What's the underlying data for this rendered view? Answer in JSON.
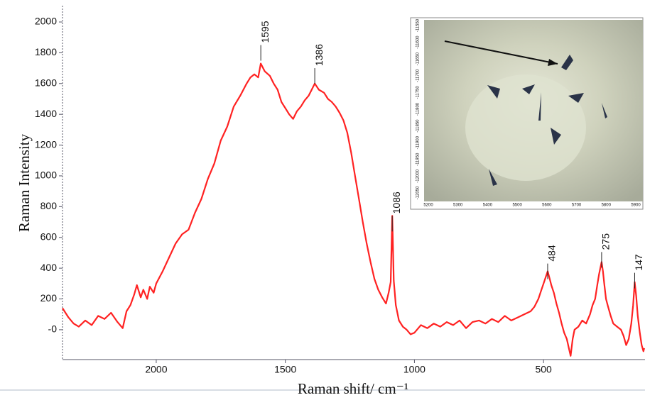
{
  "chart_data": {
    "type": "line",
    "y_label": "Raman Intensity",
    "x_label": "Raman shift/ cm⁻¹",
    "color": "#ff2222",
    "xlim": [
      2363,
      107
    ],
    "ylim": [
      -194,
      2106
    ],
    "xticks": [
      2000,
      1500,
      1000,
      500
    ],
    "yticks": [
      2000,
      1800,
      1600,
      1400,
      1200,
      1000,
      800,
      600,
      400,
      200,
      {
        "value": 0,
        "label": "-0"
      }
    ],
    "x": [
      2363,
      2340,
      2320,
      2300,
      2275,
      2250,
      2225,
      2200,
      2175,
      2150,
      2130,
      2115,
      2100,
      2085,
      2075,
      2060,
      2050,
      2035,
      2025,
      2010,
      2000,
      1975,
      1950,
      1925,
      1900,
      1875,
      1850,
      1825,
      1800,
      1775,
      1750,
      1725,
      1700,
      1675,
      1650,
      1635,
      1620,
      1605,
      1595,
      1580,
      1560,
      1545,
      1530,
      1515,
      1500,
      1485,
      1470,
      1455,
      1440,
      1425,
      1410,
      1398,
      1386,
      1370,
      1350,
      1335,
      1320,
      1305,
      1290,
      1275,
      1260,
      1245,
      1230,
      1215,
      1200,
      1185,
      1170,
      1155,
      1140,
      1125,
      1110,
      1100,
      1092,
      1086,
      1080,
      1072,
      1060,
      1045,
      1030,
      1015,
      1000,
      975,
      950,
      925,
      900,
      875,
      850,
      825,
      800,
      775,
      750,
      725,
      700,
      675,
      650,
      625,
      600,
      575,
      550,
      535,
      520,
      510,
      500,
      492,
      484,
      476,
      470,
      460,
      450,
      440,
      430,
      420,
      410,
      402,
      395,
      387,
      380,
      365,
      350,
      335,
      320,
      310,
      300,
      292,
      285,
      280,
      275,
      270,
      265,
      258,
      250,
      240,
      230,
      215,
      200,
      190,
      180,
      170,
      160,
      153,
      147,
      141,
      135,
      127,
      120,
      113,
      110
    ],
    "values": [
      140,
      80,
      40,
      20,
      60,
      30,
      90,
      70,
      110,
      50,
      10,
      120,
      160,
      230,
      290,
      210,
      260,
      200,
      280,
      240,
      300,
      380,
      470,
      560,
      620,
      650,
      760,
      850,
      980,
      1080,
      1230,
      1320,
      1450,
      1520,
      1600,
      1640,
      1660,
      1640,
      1730,
      1680,
      1650,
      1600,
      1560,
      1480,
      1440,
      1400,
      1370,
      1420,
      1450,
      1490,
      1520,
      1560,
      1600,
      1560,
      1540,
      1500,
      1480,
      1450,
      1410,
      1360,
      1280,
      1150,
      1000,
      850,
      700,
      560,
      440,
      330,
      260,
      210,
      170,
      240,
      310,
      740,
      320,
      160,
      60,
      20,
      0,
      -30,
      -20,
      30,
      10,
      40,
      20,
      50,
      30,
      60,
      10,
      50,
      60,
      40,
      70,
      50,
      90,
      60,
      80,
      100,
      120,
      150,
      200,
      250,
      300,
      340,
      380,
      330,
      290,
      240,
      170,
      110,
      40,
      -20,
      -60,
      -120,
      -170,
      -60,
      0,
      20,
      60,
      40,
      100,
      160,
      200,
      290,
      360,
      400,
      440,
      380,
      300,
      200,
      150,
      90,
      40,
      20,
      0,
      -40,
      -100,
      -60,
      40,
      160,
      310,
      220,
      90,
      -20,
      -100,
      -140,
      -120
    ],
    "peaks": [
      {
        "x": 1595,
        "y": 1850
      },
      {
        "x": 1386,
        "y": 1700
      },
      {
        "x": 1086,
        "y": 740
      },
      {
        "x": 484,
        "y": 430
      },
      {
        "x": 275,
        "y": 505
      },
      {
        "x": 147,
        "y": 370
      }
    ],
    "inset": {
      "xticks": [
        5200,
        5300,
        5400,
        5500,
        5600,
        5700,
        5800,
        5900
      ],
      "yticks": [
        -11550,
        -11600,
        -11650,
        -11700,
        -11750,
        -11800,
        -11850,
        -11900,
        -11950,
        -12000,
        -12050
      ]
    }
  }
}
